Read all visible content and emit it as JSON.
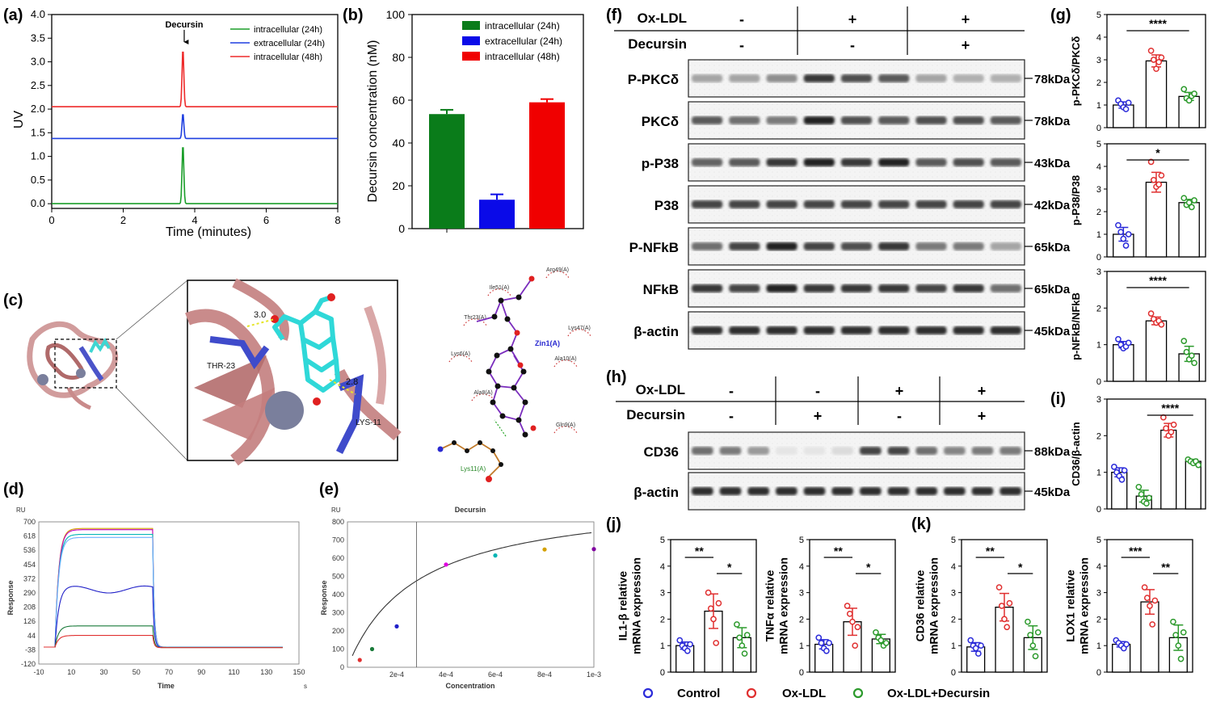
{
  "labels": {
    "a": "(a)",
    "b": "(b)",
    "c": "(c)",
    "d": "(d)",
    "e": "(e)",
    "f": "(f)",
    "g": "(g)",
    "h": "(h)",
    "i": "(i)",
    "j": "(j)",
    "k": "(k)"
  },
  "legend": {
    "control": "Control",
    "oxldl": "Ox-LDL",
    "oxdec": "Ox-LDL+Decursin"
  },
  "colors": {
    "green": "#1b9e2a",
    "blue": "#1f3fe0",
    "red": "#ee2a2a",
    "ctrl": "#2b2bd9",
    "ox": "#e03030",
    "dec": "#2c9a2c",
    "bar_green": "#0a7c1a",
    "bar_blue": "#0a0ae8",
    "bar_red": "#f00000"
  },
  "chart_data": [
    {
      "id": "a",
      "type": "line",
      "xlabel": "Time (minutes)",
      "ylabel": "UV",
      "xlim": [
        0,
        8
      ],
      "ylim": [
        -0.1,
        4.0
      ],
      "xticks": [
        0,
        2,
        4,
        6,
        8
      ],
      "yticks": [
        0.0,
        0.5,
        1.0,
        1.5,
        2.0,
        2.5,
        3.0,
        3.5,
        4.0
      ],
      "annotation": "Decursin",
      "peak_x": 3.67,
      "series": [
        {
          "name": "intracellular  (24h)",
          "color": "green",
          "baseline": 0.0,
          "peak": 1.28
        },
        {
          "name": "extracellular  (24h)",
          "color": "blue",
          "baseline": 1.38,
          "peak": 1.92
        },
        {
          "name": "intracellular  (48h)",
          "color": "red",
          "baseline": 2.05,
          "peak": 3.3
        }
      ]
    },
    {
      "id": "b",
      "type": "bar",
      "ylabel": "Decursin concentration (nM)",
      "ylim": [
        0,
        100
      ],
      "yticks": [
        0,
        20,
        40,
        60,
        80,
        100
      ],
      "series": [
        {
          "name": "intracellular  (24h)",
          "color": "bar_green",
          "value": 53.5,
          "err": 2
        },
        {
          "name": "extracellular  (24h)",
          "color": "bar_blue",
          "value": 13.5,
          "err": 2.5
        },
        {
          "name": "intracellular  (48h)",
          "color": "bar_red",
          "value": 59,
          "err": 1.5
        }
      ]
    },
    {
      "id": "d",
      "type": "line",
      "unit": "RU",
      "ylabel": "Response",
      "xlabel": "Time",
      "xunit": "s",
      "xlim": [
        -10,
        150
      ],
      "ylim": [
        -120,
        700
      ],
      "xticks": [
        "-10",
        "10",
        "30",
        "50",
        "70",
        "90",
        "110",
        "130",
        "150"
      ],
      "yticks": [
        "700",
        "618",
        "536",
        "454",
        "372",
        "290",
        "208",
        "126",
        "44",
        "-38",
        "-120"
      ],
      "series": [
        {
          "color": "#d4a000",
          "plateau": 662
        },
        {
          "color": "#c000c0",
          "plateau": 655
        },
        {
          "color": "#00b4b4",
          "plateau": 628
        },
        {
          "color": "#6fb0ff",
          "plateau": 610
        },
        {
          "color": "#2020c8",
          "plateau": 310
        },
        {
          "color": "#1a7a3a",
          "plateau": 100
        },
        {
          "color": "#e03030",
          "plateau": 45
        }
      ]
    },
    {
      "id": "e",
      "type": "scatter",
      "unit": "RU",
      "title": "Decursin",
      "ylabel": "Response",
      "xlabel": "Concentration",
      "xlim": [
        0,
        0.001
      ],
      "ylim": [
        0,
        800
      ],
      "xticks": [
        "2e-4",
        "4e-4",
        "6e-4",
        "8e-4",
        "1e-3"
      ],
      "yticks": [
        "800",
        "700",
        "600",
        "500",
        "400",
        "300",
        "200",
        "100",
        "0"
      ],
      "kd": 0.00028,
      "points": [
        {
          "x": 5e-05,
          "y": 40,
          "color": "#e03030"
        },
        {
          "x": 0.0001,
          "y": 100,
          "color": "#1a7a3a"
        },
        {
          "x": 0.0002,
          "y": 225,
          "color": "#2020c8"
        },
        {
          "x": 0.0004,
          "y": 565,
          "color": "#e000e0"
        },
        {
          "x": 0.0006,
          "y": 615,
          "color": "#00b4b4"
        },
        {
          "x": 0.0008,
          "y": 648,
          "color": "#d4a000"
        },
        {
          "x": 0.001,
          "y": 650,
          "color": "#8000a0"
        }
      ]
    },
    {
      "id": "g1",
      "type": "bar",
      "ylabel": "p-PKCδ/PKCδ",
      "ylim": [
        0,
        5
      ],
      "yticks": [
        0,
        1,
        2,
        3,
        4,
        5
      ],
      "values": [
        1.0,
        2.95,
        1.38
      ],
      "sig": "****",
      "pts": [
        [
          1.2,
          1.05,
          0.9,
          0.82,
          1.1
        ],
        [
          3.4,
          3.0,
          2.6,
          2.9,
          3.1
        ],
        [
          1.7,
          1.3,
          1.2,
          1.4,
          1.5
        ]
      ]
    },
    {
      "id": "g2",
      "type": "bar",
      "ylabel": "p-P38/P38",
      "ylim": [
        0,
        5
      ],
      "yticks": [
        0,
        1,
        2,
        3,
        4,
        5
      ],
      "values": [
        1.0,
        3.3,
        2.4
      ],
      "sig": "*",
      "pts": [
        [
          1.4,
          1.1,
          0.8,
          0.5,
          1.0
        ],
        [
          4.2,
          3.4,
          3.1,
          3.2,
          3.6
        ],
        [
          2.6,
          2.3,
          2.4,
          2.2,
          2.5
        ]
      ]
    },
    {
      "id": "g3",
      "type": "bar",
      "ylabel": "p-NFkB/NFkB",
      "ylim": [
        0,
        3
      ],
      "yticks": [
        0,
        1,
        2,
        3
      ],
      "values": [
        1.0,
        1.65,
        0.75
      ],
      "sig": "****",
      "pts": [
        [
          1.15,
          1.0,
          0.9,
          0.95,
          1.05
        ],
        [
          1.85,
          1.7,
          1.6,
          1.65,
          1.55
        ],
        [
          1.1,
          0.8,
          0.6,
          0.7,
          0.5
        ]
      ]
    },
    {
      "id": "i",
      "type": "bar",
      "ylabel": "CD36/β-actin",
      "ylim": [
        0,
        3
      ],
      "yticks": [
        0,
        1,
        2,
        3
      ],
      "values": [
        1.0,
        0.35,
        2.15,
        1.3
      ],
      "sig": "****",
      "pts": [
        [
          1.15,
          1.0,
          0.9,
          0.8,
          1.05
        ],
        [
          0.6,
          0.4,
          0.2,
          0.15,
          0.3
        ],
        [
          2.5,
          2.2,
          2.0,
          2.1,
          2.3
        ],
        [
          1.35,
          1.3,
          1.25,
          1.3,
          1.2
        ]
      ]
    },
    {
      "id": "j1",
      "type": "bar",
      "ylabel": "IL1-β relative mRNA expression",
      "ylim": [
        0,
        5
      ],
      "yticks": [
        0,
        1,
        2,
        3,
        4,
        5
      ],
      "values": [
        1.0,
        2.3,
        1.3
      ],
      "sig": [
        "**",
        "*"
      ],
      "pts": [
        [
          1.2,
          1.0,
          0.9,
          0.8,
          1.05
        ],
        [
          3.0,
          2.4,
          2.0,
          1.1,
          2.6
        ],
        [
          1.8,
          1.3,
          1.0,
          0.7,
          1.4
        ]
      ]
    },
    {
      "id": "j2",
      "type": "bar",
      "ylabel": "TNFα relative mRNA expression",
      "ylim": [
        0,
        5
      ],
      "yticks": [
        0,
        1,
        2,
        3,
        4,
        5
      ],
      "values": [
        1.05,
        1.9,
        1.25
      ],
      "sig": [
        "**",
        "*"
      ],
      "pts": [
        [
          1.3,
          1.1,
          0.9,
          0.8,
          1.1
        ],
        [
          2.5,
          2.2,
          1.9,
          1.0,
          1.7
        ],
        [
          1.5,
          1.3,
          1.2,
          1.0,
          1.1
        ]
      ]
    },
    {
      "id": "k1",
      "type": "bar",
      "ylabel": "CD36 relative mRNA expression",
      "ylim": [
        0,
        5
      ],
      "yticks": [
        0,
        1,
        2,
        3,
        4,
        5
      ],
      "values": [
        0.95,
        2.45,
        1.3
      ],
      "sig": [
        "**",
        "*"
      ],
      "pts": [
        [
          1.2,
          1.0,
          0.9,
          0.7,
          1.0
        ],
        [
          3.2,
          2.5,
          2.0,
          1.7,
          2.6
        ],
        [
          1.9,
          1.4,
          1.0,
          0.6,
          1.5
        ]
      ]
    },
    {
      "id": "k2",
      "type": "bar",
      "ylabel": "LOX1 relative mRNA expression",
      "ylim": [
        0,
        5
      ],
      "yticks": [
        0,
        1,
        2,
        3,
        4,
        5
      ],
      "values": [
        1.05,
        2.65,
        1.3
      ],
      "sig": [
        "***",
        "**"
      ],
      "pts": [
        [
          1.2,
          1.1,
          1.0,
          0.9,
          1.05
        ],
        [
          3.2,
          2.8,
          2.5,
          1.8,
          2.7
        ],
        [
          1.9,
          1.4,
          1.0,
          0.5,
          1.5
        ]
      ]
    }
  ],
  "panel_c": {
    "res_thr": "THR-23",
    "res_lys": "LYS-11",
    "dist1": "3.0",
    "dist2": "2.8",
    "zinc": "Zin1(A)",
    "lys_ligplot": "Lys11(A)",
    "ligplot_res": [
      "Arg49(A)",
      "Ile51(A)",
      "Thr23(A)",
      "Lys47(A)",
      "Lys6(A)",
      "Ala10(A)",
      "Ala8(A)",
      "Gln9(A)"
    ]
  },
  "panel_f": {
    "row1_label": "Ox-LDL",
    "row2_label": "Decursin",
    "oxldl": [
      "-",
      "+",
      "+"
    ],
    "decursin": [
      "-",
      "-",
      "+"
    ],
    "blots": [
      {
        "label": "P-PKCδ",
        "kda": "78kDa",
        "strength": [
          0.35,
          0.35,
          0.45,
          0.85,
          0.75,
          0.7,
          0.35,
          0.3,
          0.3
        ]
      },
      {
        "label": "PKCδ",
        "kda": "78kDa",
        "strength": [
          0.7,
          0.6,
          0.55,
          0.95,
          0.75,
          0.7,
          0.75,
          0.75,
          0.7
        ]
      },
      {
        "label": "p-P38",
        "kda": "43kDa",
        "strength": [
          0.65,
          0.7,
          0.85,
          0.95,
          0.85,
          0.95,
          0.7,
          0.75,
          0.7
        ]
      },
      {
        "label": "P38",
        "kda": "42kDa",
        "strength": [
          0.8,
          0.8,
          0.8,
          0.8,
          0.8,
          0.8,
          0.8,
          0.8,
          0.8
        ]
      },
      {
        "label": "P-NFkB",
        "kda": "65kDa",
        "strength": [
          0.6,
          0.8,
          0.95,
          0.8,
          0.75,
          0.85,
          0.55,
          0.55,
          0.35
        ]
      },
      {
        "label": "NFkB",
        "kda": "65kDa",
        "strength": [
          0.85,
          0.8,
          0.95,
          0.85,
          0.85,
          0.85,
          0.8,
          0.85,
          0.6
        ]
      },
      {
        "label": "β-actin",
        "kda": "45kDa",
        "strength": [
          0.9,
          0.9,
          0.9,
          0.9,
          0.9,
          0.9,
          0.9,
          0.9,
          0.9
        ]
      }
    ]
  },
  "panel_h": {
    "row1_label": "Ox-LDL",
    "row2_label": "Decursin",
    "oxldl": [
      "-",
      "-",
      "+",
      "+"
    ],
    "decursin": [
      "-",
      "+",
      "-",
      "+"
    ],
    "blots": [
      {
        "label": "CD36",
        "kda": "88kDa",
        "strength": [
          0.6,
          0.55,
          0.4,
          0.05,
          0.05,
          0.1,
          0.8,
          0.8,
          0.6,
          0.5,
          0.55,
          0.55
        ]
      },
      {
        "label": "β-actin",
        "kda": "45kDa",
        "strength": [
          0.9,
          0.9,
          0.9,
          0.9,
          0.9,
          0.9,
          0.9,
          0.9,
          0.9,
          0.9,
          0.9,
          0.9
        ]
      }
    ]
  }
}
